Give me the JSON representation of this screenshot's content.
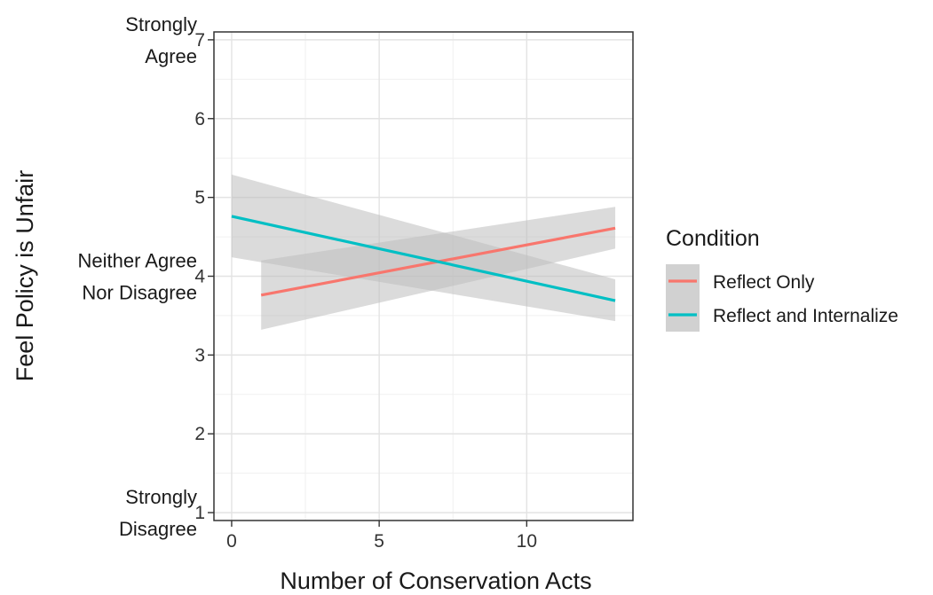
{
  "chart_data": {
    "type": "line",
    "title": "",
    "xlabel": "Number of Conservation Acts",
    "ylabel": "Feel Policy is Unfair",
    "xlim": [
      -0.6,
      13.6
    ],
    "ylim": [
      0.9,
      7.1
    ],
    "x_ticks": [
      0,
      5,
      10
    ],
    "y_ticks": [
      1,
      2,
      3,
      4,
      5,
      6,
      7
    ],
    "y_anchor_labels": [
      {
        "y": 7,
        "lines": [
          "Strongly",
          "Agree"
        ]
      },
      {
        "y": 4,
        "lines": [
          "Neither Agree",
          "Nor Disagree"
        ]
      },
      {
        "y": 1,
        "lines": [
          "Strongly",
          "Disagree"
        ]
      }
    ],
    "grid": true,
    "legend": {
      "title": "Condition",
      "position": "right"
    },
    "series": [
      {
        "name": "Reflect Only",
        "color": "#F8766D",
        "x": [
          1,
          13
        ],
        "y": [
          3.76,
          4.61
        ],
        "ci_lower": [
          3.32,
          4.35
        ],
        "ci_upper": [
          4.2,
          4.88
        ]
      },
      {
        "name": "Reflect and Internalize",
        "color": "#00BFC4",
        "x": [
          0,
          13
        ],
        "y": [
          4.76,
          3.69
        ],
        "ci_lower": [
          4.24,
          3.43
        ],
        "ci_upper": [
          5.29,
          3.96
        ]
      }
    ],
    "ribbon_color": "#bdbdbd"
  }
}
